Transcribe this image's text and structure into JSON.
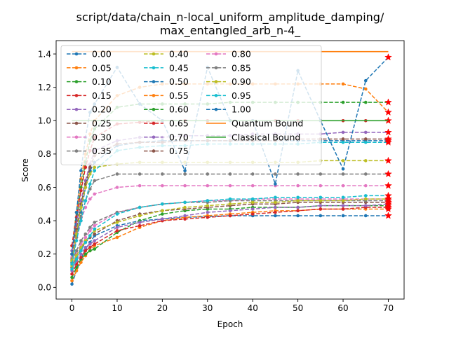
{
  "chart_data": {
    "type": "line",
    "title": "script/data/chain_n-local_uniform_amplitude_damping/\nmax_entangled_arb_n-4_",
    "xlabel": "Epoch",
    "ylabel": "Score",
    "xlim": [
      -3.5,
      73.5
    ],
    "ylim": [
      -0.07,
      1.48
    ],
    "x_ticks": [
      0,
      10,
      20,
      30,
      40,
      50,
      60,
      70
    ],
    "y_ticks": [
      0.0,
      0.2,
      0.4,
      0.6,
      0.8,
      1.0,
      1.2,
      1.4
    ],
    "x_tick_labels": [
      "0",
      "10",
      "20",
      "30",
      "40",
      "50",
      "60",
      "70"
    ],
    "y_tick_labels": [
      "0.0",
      "0.2",
      "0.4",
      "0.6",
      "0.8",
      "1.0",
      "1.2",
      "1.4"
    ],
    "grid": false,
    "legend_position": "upper-left",
    "x": [
      0,
      1,
      2,
      3,
      4,
      5,
      10,
      15,
      20,
      25,
      30,
      35,
      40,
      45,
      50,
      55,
      60,
      65,
      70
    ],
    "series": [
      {
        "name": "0.00",
        "color": "#1f77b4",
        "values": [
          0.02,
          0.1,
          0.17,
          0.23,
          0.27,
          0.31,
          0.37,
          0.4,
          0.41,
          0.42,
          0.425,
          0.43,
          0.43,
          0.43,
          0.43,
          0.43,
          0.43,
          0.43,
          0.43
        ]
      },
      {
        "name": "0.05",
        "color": "#ff7f0e",
        "values": [
          0.04,
          0.1,
          0.15,
          0.19,
          0.22,
          0.25,
          0.3,
          0.36,
          0.4,
          0.42,
          0.43,
          0.44,
          0.45,
          0.46,
          0.46,
          0.47,
          0.47,
          0.47,
          0.47
        ]
      },
      {
        "name": "0.10",
        "color": "#2ca02c",
        "values": [
          0.06,
          0.12,
          0.17,
          0.2,
          0.22,
          0.23,
          0.33,
          0.4,
          0.44,
          0.46,
          0.47,
          0.47,
          0.48,
          0.48,
          0.48,
          0.49,
          0.49,
          0.49,
          0.49
        ]
      },
      {
        "name": "0.15",
        "color": "#d62728",
        "values": [
          0.08,
          0.14,
          0.18,
          0.22,
          0.24,
          0.26,
          0.34,
          0.37,
          0.4,
          0.41,
          0.42,
          0.43,
          0.44,
          0.45,
          0.46,
          0.47,
          0.47,
          0.48,
          0.48
        ]
      },
      {
        "name": "0.20",
        "color": "#9467bd",
        "values": [
          0.1,
          0.16,
          0.2,
          0.24,
          0.26,
          0.28,
          0.36,
          0.39,
          0.41,
          0.43,
          0.45,
          0.46,
          0.47,
          0.48,
          0.48,
          0.49,
          0.49,
          0.49,
          0.5
        ]
      },
      {
        "name": "0.25",
        "color": "#8c564b",
        "values": [
          0.12,
          0.18,
          0.23,
          0.27,
          0.3,
          0.32,
          0.4,
          0.44,
          0.46,
          0.47,
          0.48,
          0.49,
          0.5,
          0.5,
          0.51,
          0.51,
          0.51,
          0.51,
          0.51
        ]
      },
      {
        "name": "0.30",
        "color": "#e377c2",
        "values": [
          0.14,
          0.2,
          0.26,
          0.3,
          0.34,
          0.37,
          0.45,
          0.48,
          0.5,
          0.51,
          0.52,
          0.52,
          0.53,
          0.53,
          0.53,
          0.53,
          0.53,
          0.53,
          0.53
        ]
      },
      {
        "name": "0.35",
        "color": "#7f7f7f",
        "values": [
          0.16,
          0.22,
          0.28,
          0.32,
          0.36,
          0.39,
          0.45,
          0.48,
          0.5,
          0.51,
          0.51,
          0.52,
          0.52,
          0.52,
          0.52,
          0.52,
          0.52,
          0.52,
          0.52
        ]
      },
      {
        "name": "0.40",
        "color": "#bcbd22",
        "values": [
          0.13,
          0.19,
          0.24,
          0.28,
          0.31,
          0.34,
          0.39,
          0.43,
          0.46,
          0.48,
          0.49,
          0.5,
          0.51,
          0.51,
          0.52,
          0.52,
          0.52,
          0.53,
          0.53
        ]
      },
      {
        "name": "0.45",
        "color": "#17becf",
        "values": [
          0.11,
          0.17,
          0.22,
          0.27,
          0.31,
          0.35,
          0.44,
          0.48,
          0.5,
          0.51,
          0.52,
          0.53,
          0.53,
          0.54,
          0.54,
          0.54,
          0.54,
          0.55,
          0.55
        ]
      },
      {
        "name": "0.50",
        "color": "#1f77b4",
        "values": [
          0.15,
          0.3,
          0.45,
          0.6,
          0.7,
          0.75,
          0.85,
          0.87,
          0.88,
          0.88,
          0.88,
          0.88,
          0.88,
          0.88,
          0.88,
          0.88,
          0.88,
          0.88,
          0.88
        ]
      },
      {
        "name": "0.55",
        "color": "#ff7f0e",
        "values": [
          0.25,
          0.45,
          0.65,
          0.8,
          0.92,
          1.0,
          1.15,
          1.2,
          1.22,
          1.22,
          1.22,
          1.22,
          1.22,
          1.22,
          1.22,
          1.22,
          1.22,
          1.19,
          1.05
        ]
      },
      {
        "name": "0.60",
        "color": "#2ca02c",
        "values": [
          0.2,
          0.4,
          0.6,
          0.75,
          0.88,
          0.95,
          1.08,
          1.1,
          1.1,
          1.1,
          1.1,
          1.11,
          1.11,
          1.11,
          1.11,
          1.11,
          1.11,
          1.11,
          1.11
        ]
      },
      {
        "name": "0.65",
        "color": "#d62728",
        "values": [
          0.25,
          0.42,
          0.58,
          0.72,
          0.82,
          0.9,
          0.98,
          0.99,
          1.0,
          1.0,
          1.0,
          1.0,
          1.0,
          1.0,
          1.0,
          1.0,
          1.0,
          1.0,
          1.0
        ]
      },
      {
        "name": "0.70",
        "color": "#9467bd",
        "values": [
          0.22,
          0.38,
          0.52,
          0.64,
          0.74,
          0.82,
          0.88,
          0.9,
          0.9,
          0.91,
          0.91,
          0.91,
          0.92,
          0.92,
          0.92,
          0.92,
          0.93,
          0.93,
          0.93
        ]
      },
      {
        "name": "0.75",
        "color": "#8c564b",
        "values": [
          0.2,
          0.35,
          0.5,
          0.62,
          0.72,
          0.79,
          0.86,
          0.87,
          0.87,
          0.88,
          0.88,
          0.88,
          0.88,
          0.88,
          0.89,
          0.89,
          0.89,
          0.89,
          0.89
        ]
      },
      {
        "name": "0.80",
        "color": "#e377c2",
        "values": [
          0.18,
          0.3,
          0.4,
          0.48,
          0.53,
          0.56,
          0.6,
          0.61,
          0.61,
          0.61,
          0.61,
          0.61,
          0.61,
          0.61,
          0.61,
          0.61,
          0.61,
          0.61,
          0.61
        ]
      },
      {
        "name": "0.85",
        "color": "#7f7f7f",
        "values": [
          0.17,
          0.3,
          0.42,
          0.52,
          0.59,
          0.64,
          0.68,
          0.68,
          0.68,
          0.68,
          0.68,
          0.68,
          0.68,
          0.68,
          0.68,
          0.68,
          0.68,
          0.68,
          0.68
        ]
      },
      {
        "name": "0.90",
        "color": "#bcbd22",
        "values": [
          0.16,
          0.32,
          0.48,
          0.6,
          0.68,
          0.72,
          0.74,
          0.75,
          0.75,
          0.75,
          0.75,
          0.75,
          0.75,
          0.75,
          0.75,
          0.76,
          0.76,
          0.76,
          0.76
        ]
      },
      {
        "name": "0.95",
        "color": "#17becf",
        "values": [
          0.14,
          0.28,
          0.4,
          0.52,
          0.62,
          0.7,
          0.82,
          0.84,
          0.85,
          0.85,
          0.86,
          0.86,
          0.86,
          0.86,
          0.86,
          0.87,
          0.87,
          0.87,
          0.87
        ]
      },
      {
        "name": "1.00",
        "color": "#1f77b4",
        "values": [
          0.2,
          0.45,
          0.7,
          0.9,
          1.05,
          1.1,
          1.32,
          1.1,
          1.0,
          0.7,
          1.32,
          1.0,
          1.0,
          0.62,
          1.3,
          1.0,
          0.71,
          1.24,
          1.38
        ]
      },
      {
        "name": "Quantum Bound",
        "color": "#ff7f0e",
        "style": "solid",
        "constant": 1.4142
      },
      {
        "name": "Classical Bound",
        "color": "#2ca02c",
        "style": "solid",
        "constant": 1.0
      }
    ],
    "final_marker": "red-star"
  }
}
